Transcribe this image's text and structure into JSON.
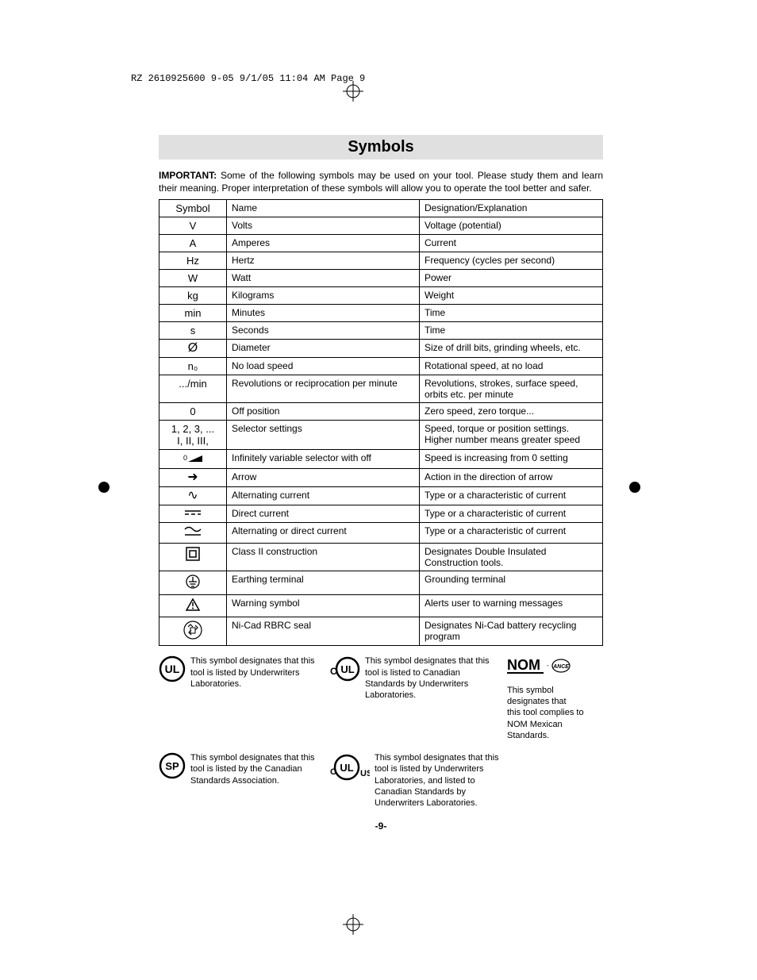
{
  "imposition": "RZ 2610925600 9-05  9/1/05  11:04 AM  Page 9",
  "title": "Symbols",
  "intro_label": "IMPORTANT:",
  "intro_text": " Some of the following symbols may be used on your tool.  Please study them and learn their meaning.  Proper interpretation of these symbols will allow you to operate the tool better and safer.",
  "headers": {
    "symbol": "Symbol",
    "name": "Name",
    "designation": "Designation/Explanation"
  },
  "rows": [
    {
      "sym": "V",
      "name": "Volts",
      "desc": "Voltage (potential)"
    },
    {
      "sym": "A",
      "name": "Amperes",
      "desc": "Current"
    },
    {
      "sym": "Hz",
      "name": "Hertz",
      "desc": "Frequency (cycles per second)"
    },
    {
      "sym": "W",
      "name": "Watt",
      "desc": "Power"
    },
    {
      "sym": "kg",
      "name": "Kilograms",
      "desc": "Weight"
    },
    {
      "sym": "min",
      "name": "Minutes",
      "desc": "Time"
    },
    {
      "sym": "s",
      "name": "Seconds",
      "desc": "Time"
    },
    {
      "sym": "Ø",
      "glyph": true,
      "name": "Diameter",
      "desc": "Size of drill bits, grinding wheels,  etc."
    },
    {
      "sym": "n₀",
      "name": "No load speed",
      "desc": "Rotational speed, at no load"
    },
    {
      "sym": ".../min",
      "name": "Revolutions or reciprocation per minute",
      "desc": "Revolutions, strokes, surface speed, orbits etc. per minute"
    },
    {
      "sym": "0",
      "name": "Off position",
      "desc": "Zero speed, zero torque..."
    },
    {
      "sym": "1, 2, 3, ...\nI, II, III,",
      "name": "Selector settings",
      "desc": "Speed, torque or position settings. Higher number means greater speed"
    },
    {
      "sym_svg": "var0",
      "name": "Infinitely variable selector with off",
      "desc": "Speed is increasing from 0 setting"
    },
    {
      "sym": "➜",
      "glyph": true,
      "name": "Arrow",
      "desc": "Action in the direction of arrow"
    },
    {
      "sym": "∿",
      "glyph": true,
      "name": "Alternating current",
      "desc": "Type or a characteristic of current"
    },
    {
      "sym_svg": "dc",
      "name": "Direct current",
      "desc": "Type or a characteristic of current"
    },
    {
      "sym_svg": "acdc",
      "name": "Alternating or direct current",
      "desc": "Type or a characteristic of current"
    },
    {
      "sym_svg": "class2",
      "name": "Class II  construction",
      "desc": "Designates Double Insulated Construction tools."
    },
    {
      "sym_svg": "earth",
      "name": "Earthing terminal",
      "desc": "Grounding terminal"
    },
    {
      "sym_svg": "warning",
      "name": "Warning symbol",
      "desc": "Alerts user to warning messages"
    },
    {
      "sym_svg": "rbrc",
      "name": "Ni-Cad RBRC seal",
      "desc": "Designates Ni-Cad battery recycling program"
    }
  ],
  "certs": {
    "ul": "This symbol designates that this tool is listed by Underwriters Laboratories.",
    "cul": "This symbol designates that this tool is listed to Canadian Standards by Underwriters Laboratories.",
    "nom": "This symbol designates that\nthis tool complies to NOM Mexican Standards.",
    "csa": "This symbol designates that this tool is listed by the Canadian Standards Association.",
    "culus": "This symbol designates that this tool is listed by Underwriters Laboratories, and listed to Canadian Standards by Underwriters Laboratories."
  },
  "page_number": "-9-"
}
